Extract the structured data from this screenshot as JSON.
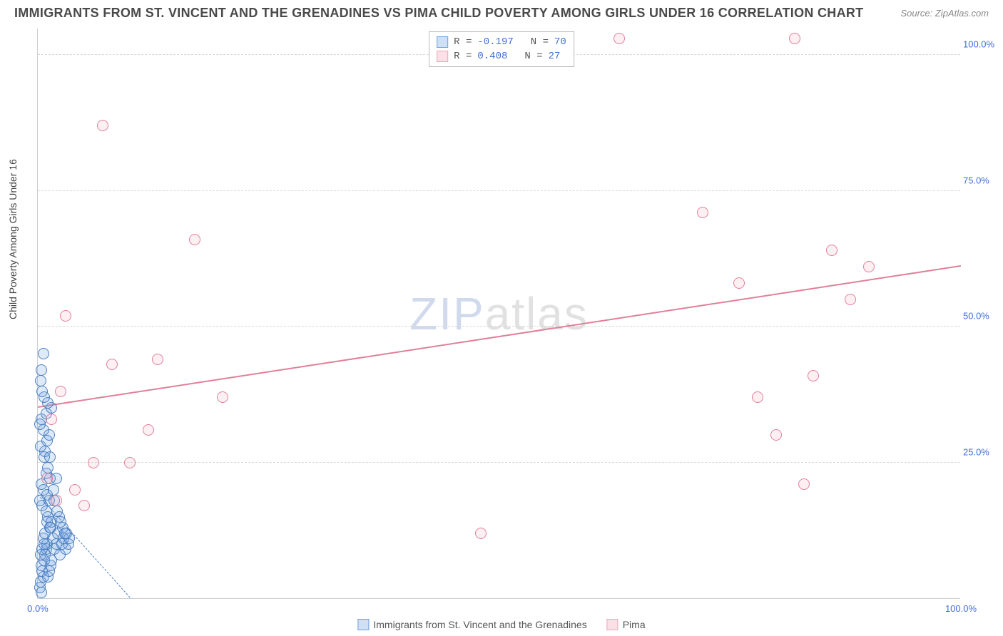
{
  "title": "IMMIGRANTS FROM ST. VINCENT AND THE GRENADINES VS PIMA CHILD POVERTY AMONG GIRLS UNDER 16 CORRELATION CHART",
  "source": "Source: ZipAtlas.com",
  "ylabel": "Child Poverty Among Girls Under 16",
  "watermark_a": "ZIP",
  "watermark_b": "atlas",
  "chart": {
    "type": "scatter",
    "background_color": "#ffffff",
    "grid_color": "#d8d8d8",
    "axis_color": "#cccccc",
    "tick_label_color": "#3f6fd6",
    "tick_fontsize": 13,
    "xlim": [
      0,
      100
    ],
    "ylim": [
      0,
      105
    ],
    "yticks": [
      25,
      50,
      75,
      100
    ],
    "ytick_labels": [
      "25.0%",
      "50.0%",
      "75.0%",
      "100.0%"
    ],
    "xticks": [
      0,
      100
    ],
    "xtick_labels": [
      "0.0%",
      "100.0%"
    ],
    "marker_radius": 8,
    "marker_stroke_width": 1.5,
    "marker_fill_opacity": 0.22,
    "series": [
      {
        "name": "Immigrants from St. Vincent and the Grenadines",
        "color": "#6fa0e0",
        "stroke": "#4b7fc2",
        "r": -0.197,
        "n": 70,
        "trend": {
          "x1": 0,
          "y1": 19,
          "x2": 10,
          "y2": 0,
          "dash": true,
          "width": 1.2
        },
        "points": [
          [
            0.2,
            2
          ],
          [
            0.3,
            3
          ],
          [
            0.4,
            1
          ],
          [
            0.5,
            5
          ],
          [
            0.6,
            4
          ],
          [
            0.4,
            6
          ],
          [
            0.7,
            7
          ],
          [
            0.8,
            8
          ],
          [
            0.9,
            9
          ],
          [
            1.0,
            10
          ],
          [
            1.1,
            4
          ],
          [
            1.2,
            5
          ],
          [
            0.6,
            11
          ],
          [
            0.8,
            12
          ],
          [
            1.3,
            13
          ],
          [
            1.0,
            14
          ],
          [
            1.1,
            15
          ],
          [
            0.9,
            16
          ],
          [
            1.4,
            6
          ],
          [
            1.5,
            7
          ],
          [
            0.3,
            8
          ],
          [
            0.5,
            9
          ],
          [
            0.7,
            10
          ],
          [
            1.6,
            11
          ],
          [
            1.8,
            9
          ],
          [
            2.0,
            10
          ],
          [
            1.2,
            18
          ],
          [
            1.0,
            19
          ],
          [
            0.6,
            20
          ],
          [
            0.4,
            21
          ],
          [
            1.3,
            22
          ],
          [
            1.5,
            14
          ],
          [
            0.9,
            23
          ],
          [
            1.1,
            24
          ],
          [
            0.5,
            17
          ],
          [
            0.7,
            26
          ],
          [
            2.2,
            12
          ],
          [
            2.4,
            8
          ],
          [
            2.6,
            10
          ],
          [
            2.8,
            11
          ],
          [
            3.0,
            9
          ],
          [
            1.4,
            13
          ],
          [
            0.8,
            27
          ],
          [
            0.2,
            18
          ],
          [
            0.3,
            28
          ],
          [
            1.0,
            29
          ],
          [
            1.2,
            30
          ],
          [
            0.6,
            31
          ],
          [
            0.4,
            33
          ],
          [
            0.9,
            34
          ],
          [
            1.5,
            35
          ],
          [
            1.8,
            18
          ],
          [
            2.0,
            22
          ],
          [
            2.3,
            15
          ],
          [
            2.7,
            13
          ],
          [
            3.1,
            12
          ],
          [
            3.4,
            11
          ],
          [
            1.1,
            36
          ],
          [
            0.7,
            37
          ],
          [
            0.5,
            38
          ],
          [
            0.3,
            40
          ],
          [
            0.4,
            42
          ],
          [
            0.6,
            45
          ],
          [
            0.2,
            32
          ],
          [
            1.3,
            26
          ],
          [
            1.7,
            20
          ],
          [
            2.1,
            16
          ],
          [
            2.5,
            14
          ],
          [
            2.9,
            12
          ],
          [
            3.3,
            10
          ]
        ]
      },
      {
        "name": "Pima",
        "color": "#f5b8c5",
        "stroke": "#e07f9a",
        "r": 0.408,
        "n": 27,
        "trend": {
          "x1": 0,
          "y1": 35,
          "x2": 100,
          "y2": 61,
          "dash": false,
          "width": 2
        },
        "points": [
          [
            1,
            22
          ],
          [
            1.5,
            33
          ],
          [
            2,
            18
          ],
          [
            2.5,
            38
          ],
          [
            3,
            52
          ],
          [
            4,
            20
          ],
          [
            5,
            17
          ],
          [
            6,
            25
          ],
          [
            7,
            87
          ],
          [
            8,
            43
          ],
          [
            10,
            25
          ],
          [
            12,
            31
          ],
          [
            13,
            44
          ],
          [
            17,
            66
          ],
          [
            20,
            37
          ],
          [
            48,
            12
          ],
          [
            63,
            103
          ],
          [
            72,
            71
          ],
          [
            76,
            58
          ],
          [
            78,
            37
          ],
          [
            80,
            30
          ],
          [
            82,
            103
          ],
          [
            83,
            21
          ],
          [
            84,
            41
          ],
          [
            86,
            64
          ],
          [
            88,
            55
          ],
          [
            90,
            61
          ]
        ]
      }
    ]
  },
  "legend_top": {
    "rows": [
      {
        "swatch_fill": "#cfe0f4",
        "swatch_stroke": "#6fa0e0",
        "r_label": "R =",
        "r_value": "-0.197",
        "n_label": "N =",
        "n_value": "70"
      },
      {
        "swatch_fill": "#fbe0e7",
        "swatch_stroke": "#f0a5b8",
        "r_label": "R =",
        "r_value": "0.408",
        "n_label": "N =",
        "n_value": "27"
      }
    ]
  },
  "legend_bottom": {
    "items": [
      {
        "swatch_fill": "#cfe0f4",
        "swatch_stroke": "#6fa0e0",
        "label": "Immigrants from St. Vincent and the Grenadines"
      },
      {
        "swatch_fill": "#fbe0e7",
        "swatch_stroke": "#f0a5b8",
        "label": "Pima"
      }
    ]
  }
}
